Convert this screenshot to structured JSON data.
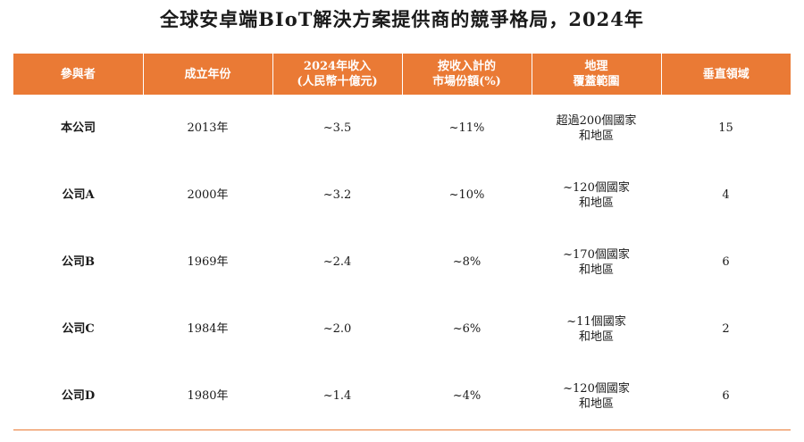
{
  "title": "全球安卓端BIoT解決方案提供商的競爭格局，2024年",
  "table": {
    "headers": [
      [
        "參與者"
      ],
      [
        "成立年份"
      ],
      [
        "2024年收入",
        "(人民幣十億元)"
      ],
      [
        "按收入計的",
        "市場份額(%)"
      ],
      [
        "地理",
        "覆蓋範圍"
      ],
      [
        "垂直領域"
      ]
    ],
    "rows": [
      {
        "name": "本公司",
        "founded": "2013年",
        "revenue": "~3.5",
        "share": "~11%",
        "coverage": [
          "超過200個國家",
          "和地區"
        ],
        "verticals": "15"
      },
      {
        "name": "公司A",
        "founded": "2000年",
        "revenue": "~3.2",
        "share": "~10%",
        "coverage": [
          "~120個國家",
          "和地區"
        ],
        "verticals": "4"
      },
      {
        "name": "公司B",
        "founded": "1969年",
        "revenue": "~2.4",
        "share": "~8%",
        "coverage": [
          "~170個國家",
          "和地區"
        ],
        "verticals": "6"
      },
      {
        "name": "公司C",
        "founded": "1984年",
        "revenue": "~2.0",
        "share": "~6%",
        "coverage": [
          "~11個國家",
          "和地區"
        ],
        "verticals": "2"
      },
      {
        "name": "公司D",
        "founded": "1980年",
        "revenue": "~1.4",
        "share": "~4%",
        "coverage": [
          "~120個國家",
          "和地區"
        ],
        "verticals": "6"
      }
    ]
  },
  "colors": {
    "header_bg": "#ea7a35",
    "header_text": "#ffffff",
    "rule": "#ea7a35"
  }
}
